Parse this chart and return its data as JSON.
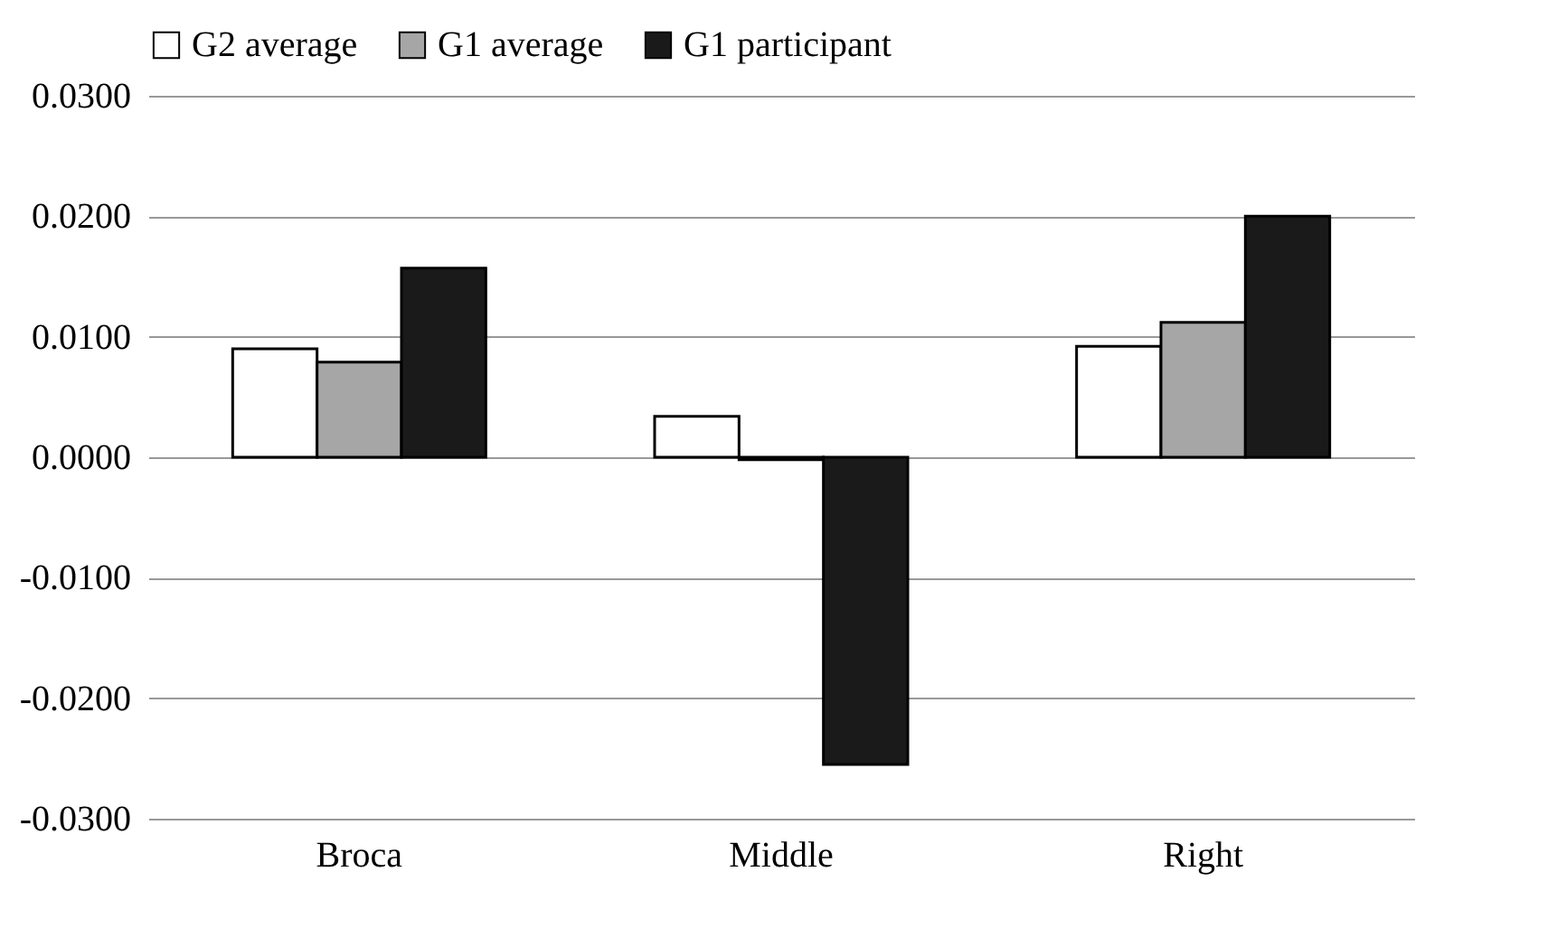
{
  "chart_data": {
    "type": "bar",
    "categories": [
      "Broca",
      "Middle",
      "Right"
    ],
    "series": [
      {
        "name": "G2 average",
        "color": "#ffffff",
        "values": [
          0.009,
          0.0034,
          0.0092
        ]
      },
      {
        "name": "G1 average",
        "color": "#a6a6a6",
        "values": [
          0.0079,
          -0.0002,
          0.0112
        ]
      },
      {
        "name": "G1 participant",
        "color": "#1a1a1a",
        "values": [
          0.0157,
          -0.0255,
          0.02
        ]
      }
    ],
    "ylim": [
      -0.03,
      0.03
    ],
    "yticks": [
      {
        "value": -0.03,
        "label": "-0.0300"
      },
      {
        "value": -0.02,
        "label": "-0.0200"
      },
      {
        "value": -0.01,
        "label": "-0.0100"
      },
      {
        "value": 0,
        "label": "0.0000"
      },
      {
        "value": 0.01,
        "label": "0.0100"
      },
      {
        "value": 0.02,
        "label": "0.0200"
      },
      {
        "value": 0.03,
        "label": "0.0300"
      }
    ],
    "grid": "y",
    "legend": "top"
  }
}
